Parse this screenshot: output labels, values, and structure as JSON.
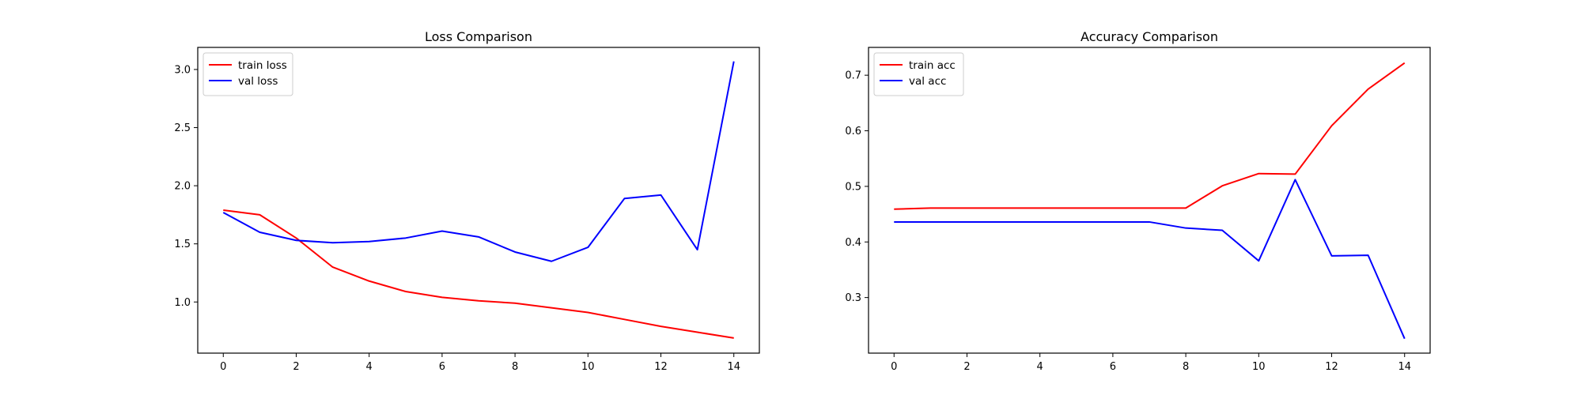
{
  "chart_data": [
    {
      "type": "line",
      "title": "Loss Comparison",
      "xlabel": "",
      "ylabel": "",
      "x": [
        0,
        1,
        2,
        3,
        4,
        5,
        6,
        7,
        8,
        9,
        10,
        11,
        12,
        13,
        14
      ],
      "xlim": [
        -0.7,
        14.7
      ],
      "ylim": [
        0.56,
        3.19
      ],
      "xticks": [
        0,
        2,
        4,
        6,
        8,
        10,
        12,
        14
      ],
      "yticks": [
        1.0,
        1.5,
        2.0,
        2.5,
        3.0
      ],
      "ytick_labels": [
        "1.0",
        "1.5",
        "2.0",
        "2.5",
        "3.0"
      ],
      "grid": false,
      "legend_position": "top-left",
      "series": [
        {
          "name": "train loss",
          "color": "#ff0000",
          "values": [
            1.79,
            1.75,
            1.55,
            1.3,
            1.18,
            1.09,
            1.04,
            1.01,
            0.99,
            0.95,
            0.91,
            0.85,
            0.79,
            0.74,
            0.69
          ]
        },
        {
          "name": "val loss",
          "color": "#0000ff",
          "values": [
            1.77,
            1.6,
            1.53,
            1.51,
            1.52,
            1.55,
            1.61,
            1.56,
            1.43,
            1.35,
            1.47,
            1.89,
            1.92,
            1.45,
            3.07
          ]
        }
      ]
    },
    {
      "type": "line",
      "title": "Accuracy Comparison",
      "xlabel": "",
      "ylabel": "",
      "x": [
        0,
        1,
        2,
        3,
        4,
        5,
        6,
        7,
        8,
        9,
        10,
        11,
        12,
        13,
        14
      ],
      "xlim": [
        -0.7,
        14.7
      ],
      "ylim": [
        0.2,
        0.75
      ],
      "xticks": [
        0,
        2,
        4,
        6,
        8,
        10,
        12,
        14
      ],
      "yticks": [
        0.3,
        0.4,
        0.5,
        0.6,
        0.7
      ],
      "ytick_labels": [
        "0.3",
        "0.4",
        "0.5",
        "0.6",
        "0.7"
      ],
      "grid": false,
      "legend_position": "top-left",
      "series": [
        {
          "name": "train acc",
          "color": "#ff0000",
          "values": [
            0.459,
            0.461,
            0.461,
            0.461,
            0.461,
            0.461,
            0.461,
            0.461,
            0.461,
            0.501,
            0.523,
            0.522,
            0.609,
            0.675,
            0.722
          ]
        },
        {
          "name": "val acc",
          "color": "#0000ff",
          "values": [
            0.436,
            0.436,
            0.436,
            0.436,
            0.436,
            0.436,
            0.436,
            0.436,
            0.425,
            0.421,
            0.366,
            0.512,
            0.375,
            0.376,
            0.226
          ]
        }
      ]
    }
  ]
}
